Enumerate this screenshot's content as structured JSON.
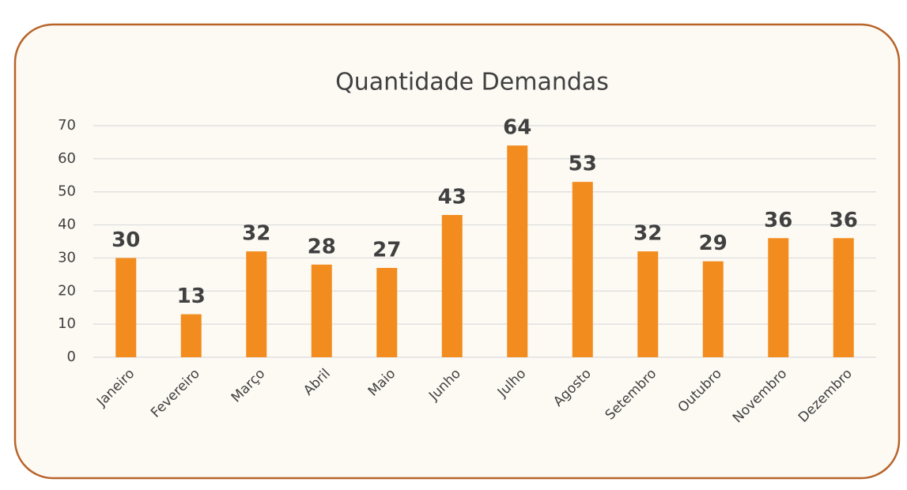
{
  "chart_data": {
    "type": "bar",
    "title": "Quantidade Demandas",
    "categories": [
      "Janeiro",
      "Fevereiro",
      "Março",
      "Abril",
      "Maio",
      "Junho",
      "Julho",
      "Agosto",
      "Setembro",
      "Outubro",
      "Novembro",
      "Dezembro"
    ],
    "values": [
      30,
      13,
      32,
      28,
      27,
      43,
      64,
      53,
      32,
      29,
      36,
      36
    ],
    "color": "#f28c1f",
    "ylim": [
      0,
      70
    ],
    "yticks": [
      0,
      10,
      20,
      30,
      40,
      50,
      60,
      70
    ],
    "grid": true
  }
}
